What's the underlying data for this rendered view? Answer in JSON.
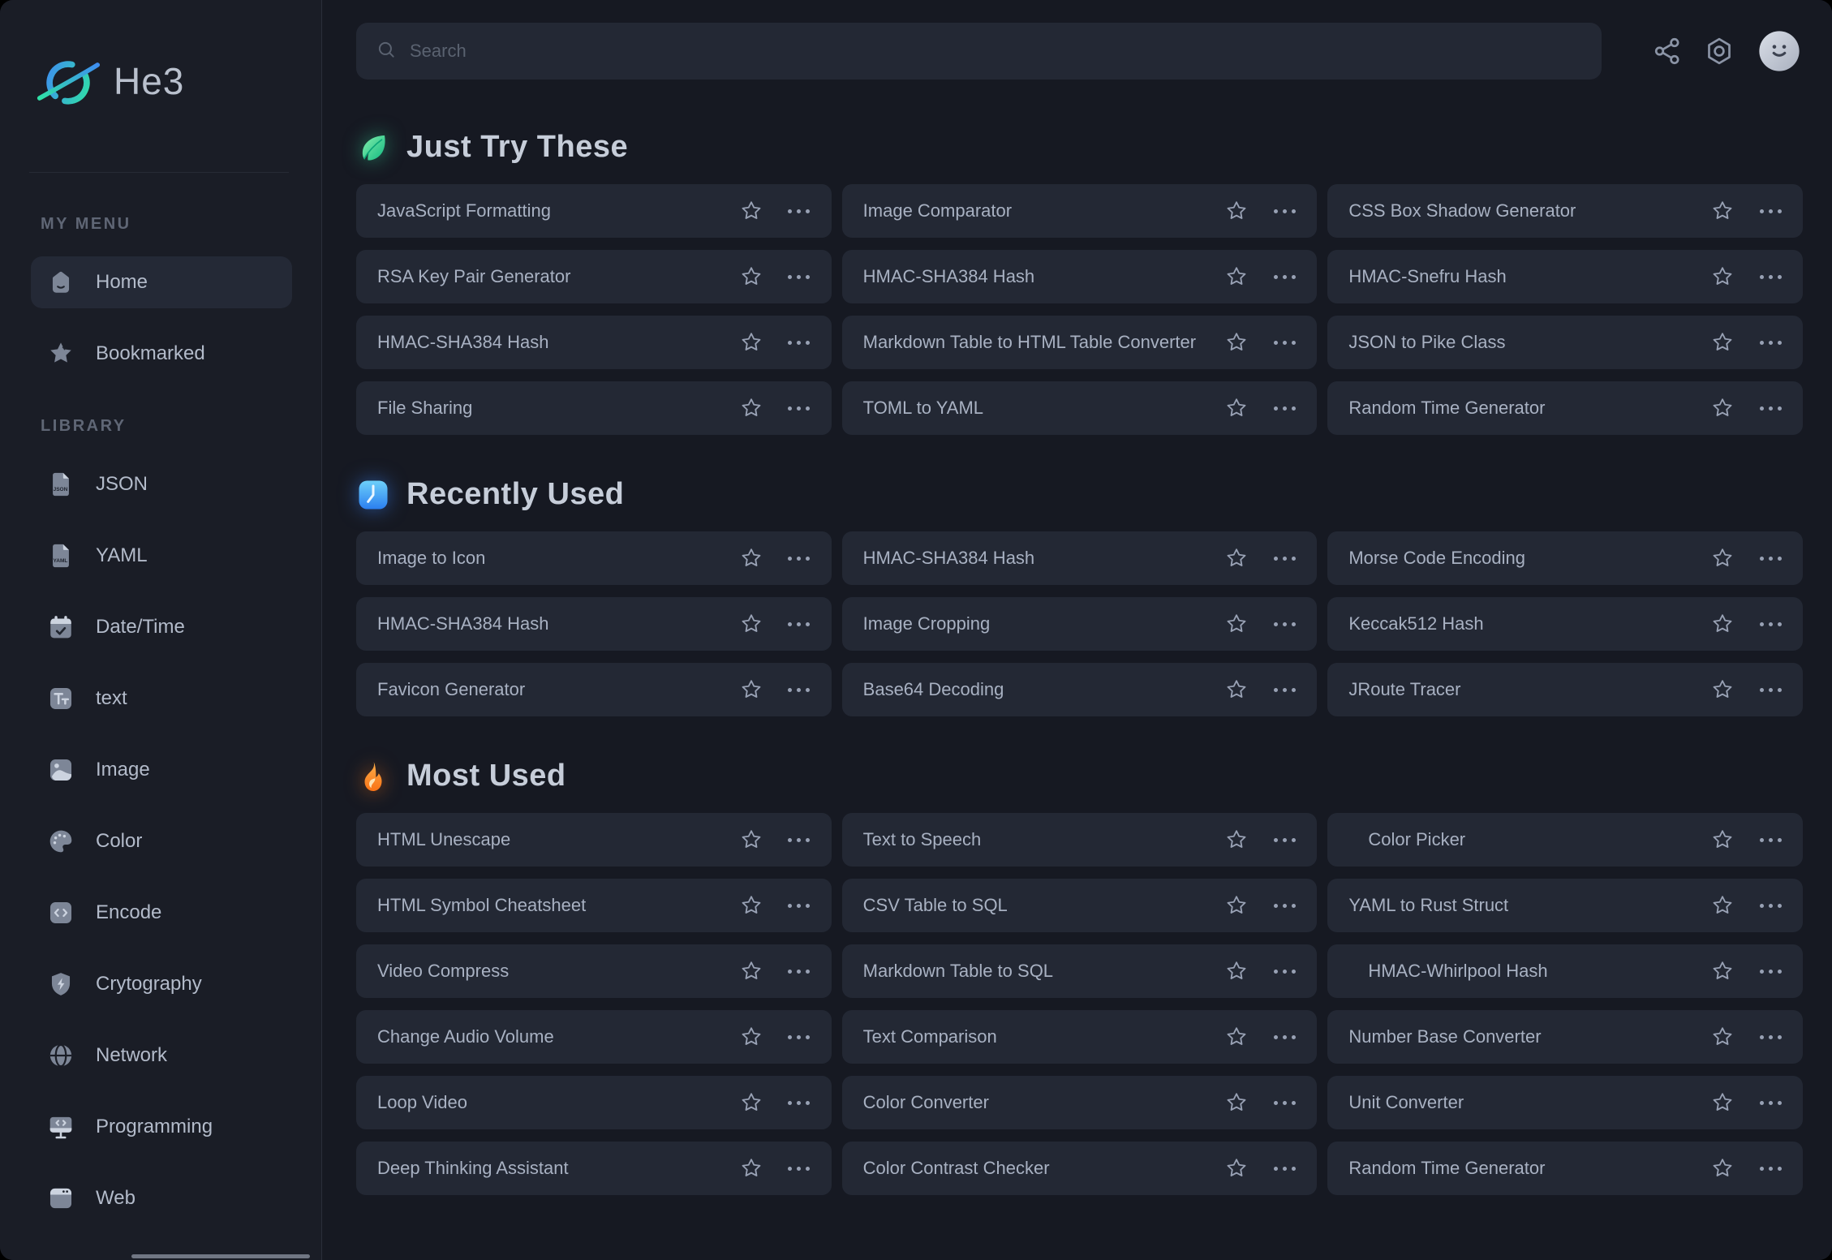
{
  "app": {
    "name": "He3"
  },
  "topbar": {
    "search_placeholder": "Search",
    "icons": [
      "share-icon",
      "settings-gear-icon",
      "user-avatar"
    ]
  },
  "colors": {
    "background": "#161922",
    "sidebar": "#1a1d26",
    "card": "#232834",
    "accent_blue": "#3e8ef0",
    "accent_teal": "#2fe0a6",
    "leaf_green": "#10b981",
    "clock_blue": "#2b7ff0",
    "fire_orange": "#f97316"
  },
  "sidebar": {
    "sections": [
      {
        "label": "MY MENU",
        "items": [
          {
            "label": "Home",
            "icon": "home",
            "active": true
          },
          {
            "label": "Bookmarked",
            "icon": "bookmark-star",
            "active": false
          }
        ]
      },
      {
        "label": "LIBRARY",
        "items": [
          {
            "label": "JSON",
            "icon": "file-json"
          },
          {
            "label": "YAML",
            "icon": "file-yaml"
          },
          {
            "label": "Date/Time",
            "icon": "calendar-check"
          },
          {
            "label": "text",
            "icon": "text-format"
          },
          {
            "label": "Image",
            "icon": "image"
          },
          {
            "label": "Color",
            "icon": "color-palette"
          },
          {
            "label": "Encode",
            "icon": "code"
          },
          {
            "label": "Crytography",
            "icon": "shield-bolt"
          },
          {
            "label": "Network",
            "icon": "globe"
          },
          {
            "label": "Programming",
            "icon": "monitor-code"
          },
          {
            "label": "Web",
            "icon": "browser-window"
          }
        ]
      }
    ]
  },
  "sections": [
    {
      "emoji": "leaf",
      "title": "Just Try These",
      "tools": [
        "JavaScript Formatting",
        "Image Comparator",
        "CSS Box Shadow Generator",
        "RSA Key Pair Generator",
        "HMAC-SHA384 Hash",
        "HMAC-Snefru Hash",
        "HMAC-SHA384 Hash",
        "Markdown Table to HTML Table Converter",
        "JSON to Pike Class",
        "File Sharing",
        "TOML to YAML",
        "Random Time Generator"
      ]
    },
    {
      "emoji": "clock",
      "title": "Recently Used",
      "tools": [
        "Image to Icon",
        "HMAC-SHA384 Hash",
        "Morse Code Encoding",
        "HMAC-SHA384 Hash",
        "Image Cropping",
        "Keccak512 Hash",
        "Favicon Generator",
        "Base64 Decoding",
        "JRoute Tracer"
      ]
    },
    {
      "emoji": "fire",
      "title": "Most Used",
      "tools": [
        "HTML Unescape",
        "Text to Speech",
        {
          "label": "Color Picker",
          "indented": true
        },
        "HTML Symbol Cheatsheet",
        "CSV Table to SQL",
        "YAML to Rust Struct",
        "Video Compress",
        "Markdown Table to SQL",
        {
          "label": "HMAC-Whirlpool Hash",
          "indented": true
        },
        "Change Audio Volume",
        "Text Comparison",
        "Number Base Converter",
        "Loop Video",
        "Color Converter",
        "Unit Converter",
        "Deep Thinking Assistant",
        "Color Contrast Checker",
        "Random Time Generator"
      ]
    }
  ]
}
